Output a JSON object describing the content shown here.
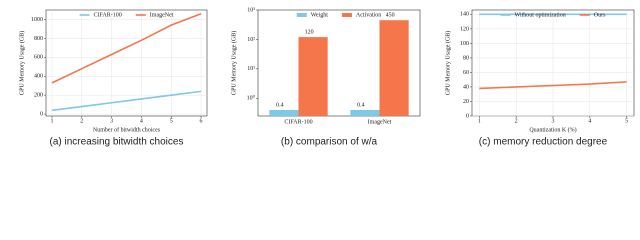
{
  "chart_data": [
    {
      "type": "line",
      "caption": "(a) increasing bitwidth choices",
      "xlabel": "Number of bitwidth choices",
      "ylabel": "GPU Memory Usage (GB)",
      "x": [
        1,
        2,
        3,
        4,
        5,
        6
      ],
      "series": [
        {
          "name": "CIFAR-100",
          "color": "#7fc8e6",
          "values": [
            40,
            80,
            120,
            160,
            200,
            240
          ]
        },
        {
          "name": "ImageNet",
          "color": "#f4764a",
          "values": [
            330,
            480,
            630,
            780,
            940,
            1060
          ]
        }
      ],
      "xlim": [
        0.8,
        6.2
      ],
      "xticks": [
        1,
        2,
        3,
        4,
        5,
        6
      ],
      "ylim": [
        -20,
        1100
      ],
      "yticks": [
        0,
        200,
        400,
        600,
        800,
        1000
      ],
      "grid": true,
      "legend": "upper center"
    },
    {
      "type": "bar",
      "caption": "(b) comparison of w/a",
      "ylabel": "GPU Memory Usage (GB)",
      "categories": [
        "CIFAR-100",
        "ImageNet"
      ],
      "series": [
        {
          "name": "Weight",
          "color": "#7fc8e6",
          "values": [
            0.4,
            0.4
          ]
        },
        {
          "name": "Activation",
          "color": "#f4764a",
          "values": [
            120,
            450
          ]
        }
      ],
      "log_scale": true,
      "ylim": [
        0.25,
        1000
      ],
      "yticks": [
        {
          "value": 1,
          "label": "10⁰"
        },
        {
          "value": 10,
          "label": "10¹"
        },
        {
          "value": 100,
          "label": "10²"
        },
        {
          "value": 1000,
          "label": "10³"
        }
      ],
      "grid": false,
      "legend": "upper center"
    },
    {
      "type": "line",
      "caption": "(c) memory reduction degree",
      "xlabel": "Quantization K (%)",
      "ylabel": "GPU Memory Usage (GB)",
      "x": [
        1,
        2,
        3,
        4,
        5
      ],
      "series": [
        {
          "name": "Without optimization",
          "color": "#7fc8e6",
          "values": [
            140,
            140,
            140,
            140,
            140
          ]
        },
        {
          "name": "Ours",
          "color": "#f4764a",
          "values": [
            38,
            40,
            42,
            44,
            47
          ]
        }
      ],
      "xlim": [
        0.8,
        5.2
      ],
      "xticks": [
        1,
        2,
        3,
        4,
        5
      ],
      "ylim": [
        0,
        146
      ],
      "yticks": [
        0,
        20,
        40,
        60,
        80,
        100,
        120,
        140
      ],
      "grid": true,
      "legend": "upper center"
    }
  ]
}
